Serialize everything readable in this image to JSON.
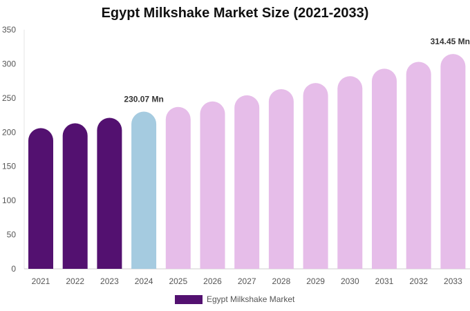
{
  "chart_data": {
    "type": "bar",
    "title": "Egypt Milkshake Market Size (2021-2033)",
    "xlabel": "",
    "ylabel": "",
    "categories": [
      "2021",
      "2022",
      "2023",
      "2024",
      "2025",
      "2026",
      "2027",
      "2028",
      "2029",
      "2030",
      "2031",
      "2032",
      "2033"
    ],
    "series": [
      {
        "name": "Egypt Milkshake Market",
        "values": [
          206,
          213,
          221,
          230.07,
          237,
          245,
          254,
          263,
          272,
          282,
          293,
          303,
          314.45
        ]
      }
    ],
    "bar_colors": [
      "#531170",
      "#531170",
      "#531170",
      "#a5cbe0",
      "#e6bde9",
      "#e6bde9",
      "#e6bde9",
      "#e6bde9",
      "#e6bde9",
      "#e6bde9",
      "#e6bde9",
      "#e6bde9",
      "#e6bde9"
    ],
    "data_labels": [
      {
        "index": 3,
        "text": "230.07 Mn"
      },
      {
        "index": 12,
        "text": "314.45 Mn"
      }
    ],
    "ylim": [
      0,
      350
    ],
    "yticks": [
      0,
      50,
      100,
      150,
      200,
      250,
      300,
      350
    ],
    "grid": false,
    "legend": {
      "position": "bottom",
      "label": "Egypt Milkshake Market",
      "color": "#531170"
    }
  }
}
